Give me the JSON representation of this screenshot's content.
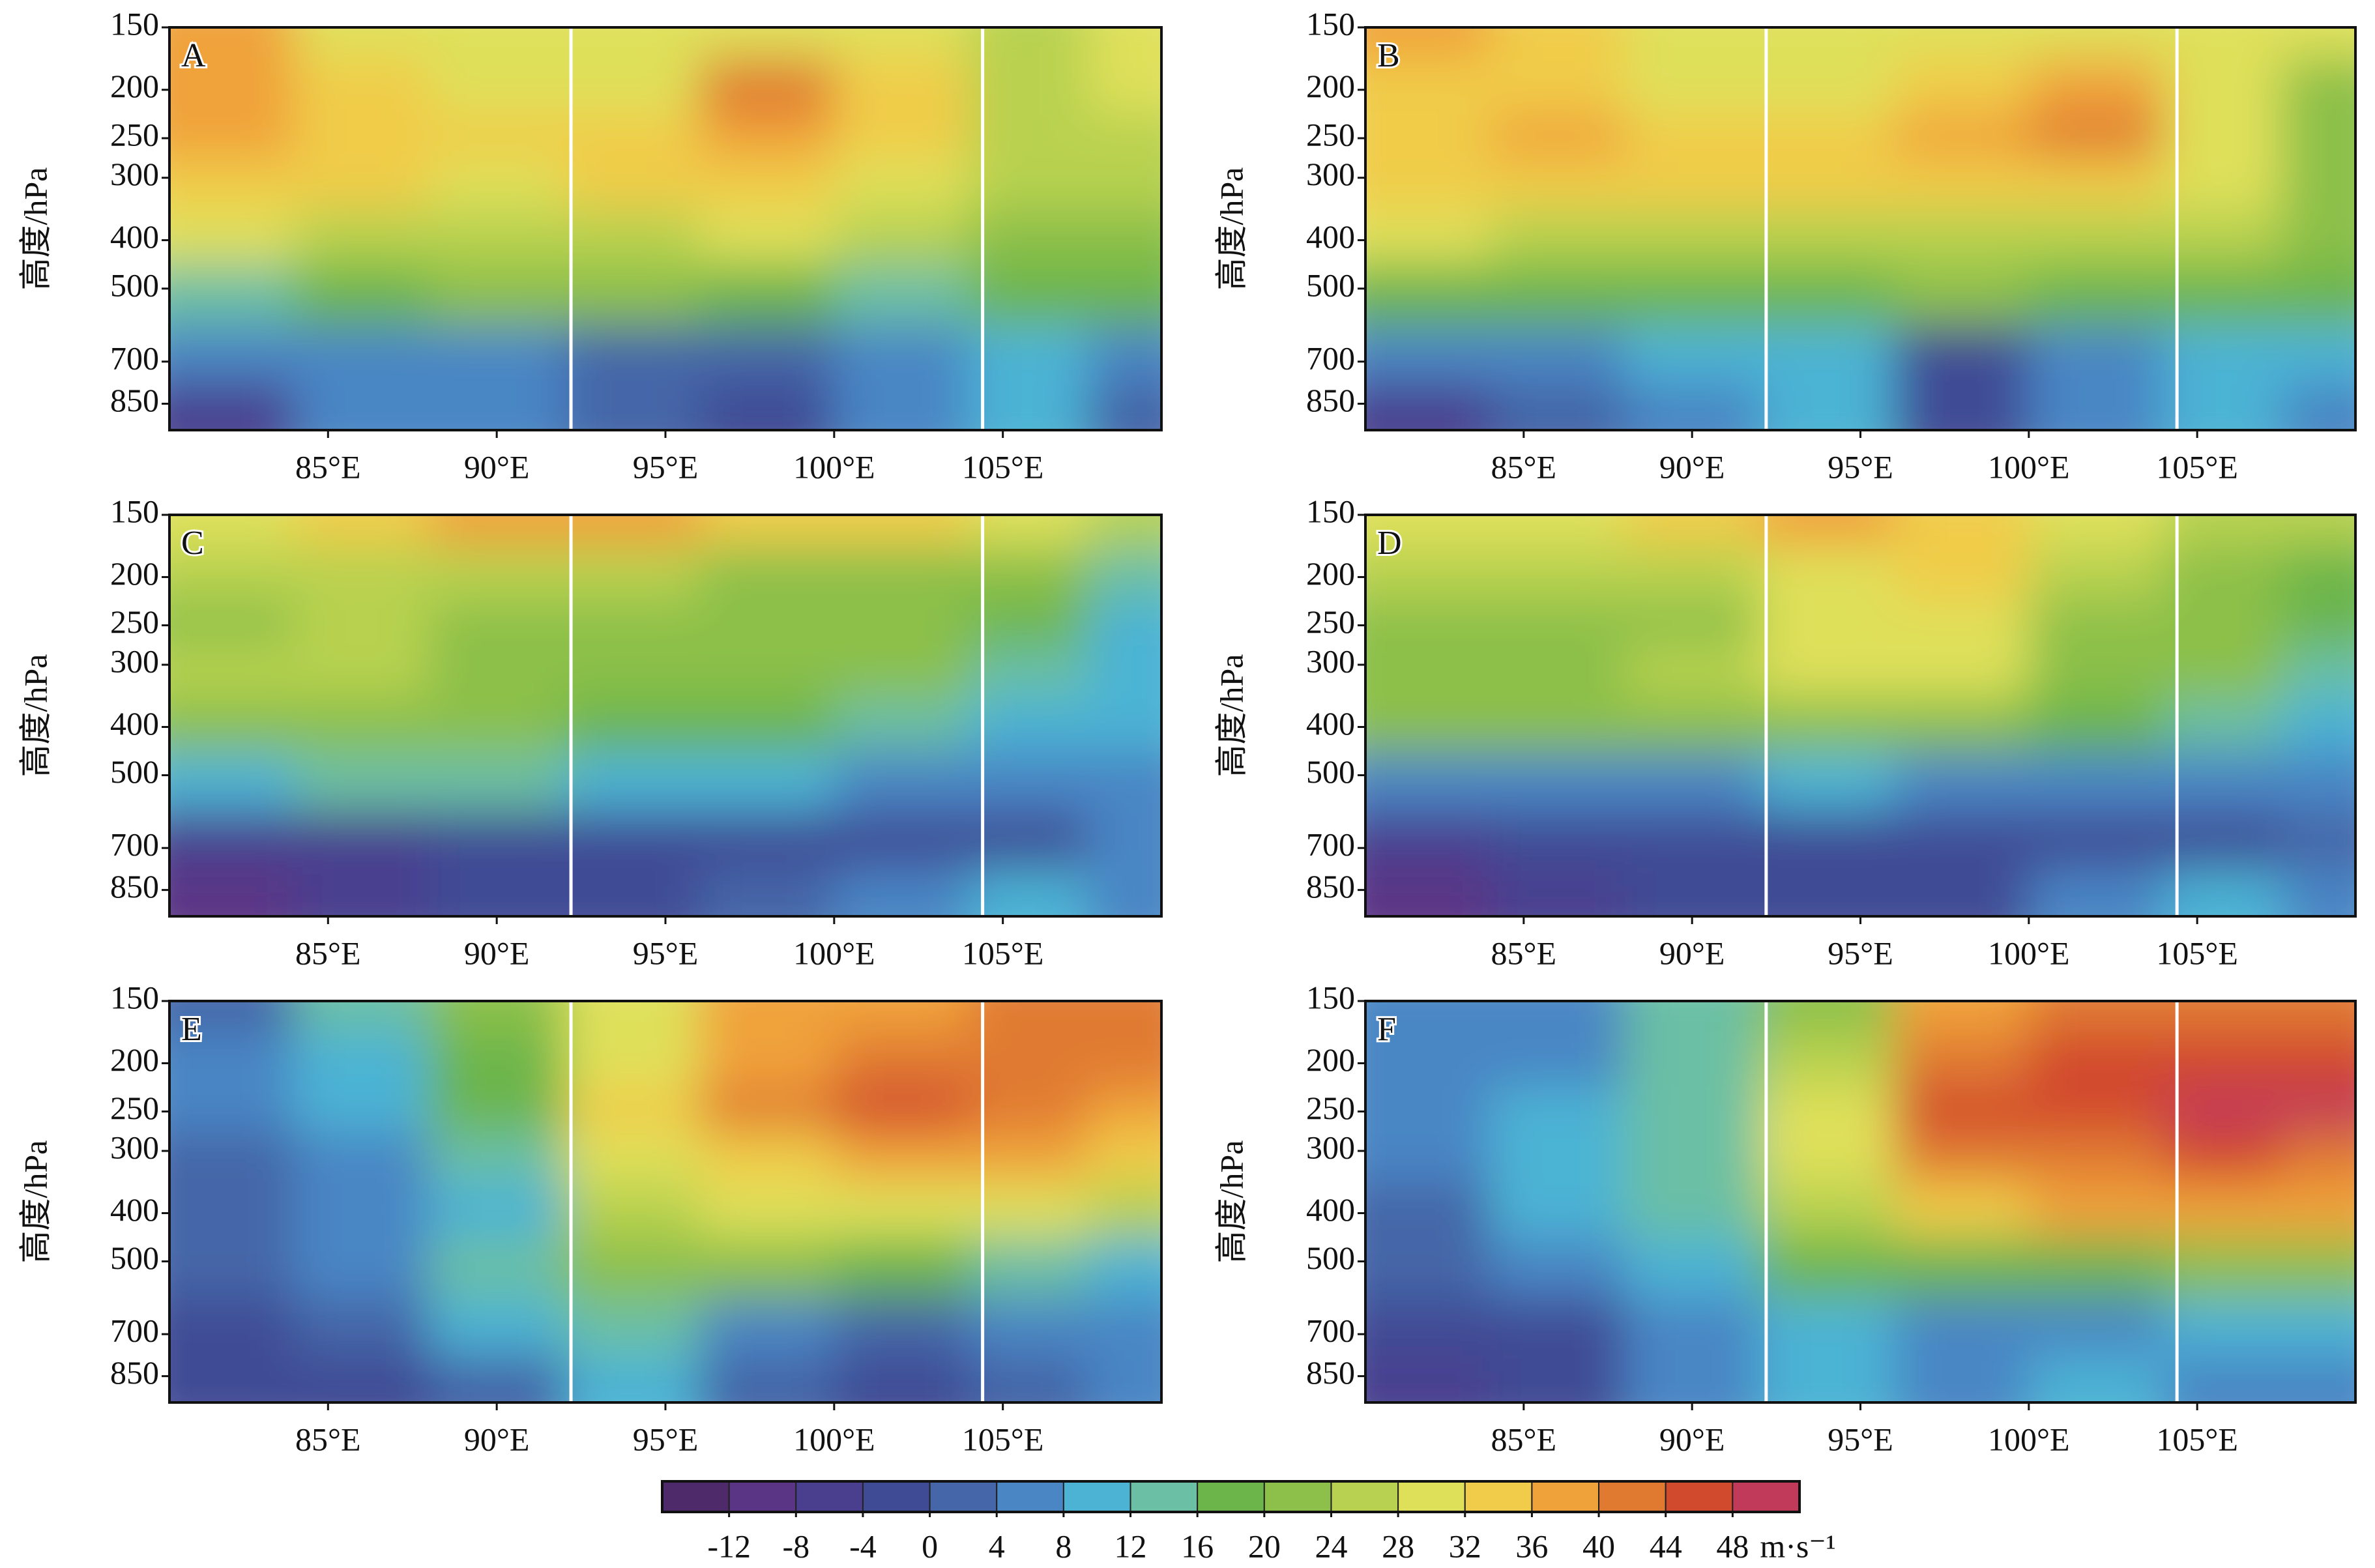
{
  "chart_data": [
    {
      "type": "contour",
      "label": "A",
      "ylabel": "高度/hPa",
      "x": [
        82,
        86,
        90,
        94,
        98,
        102,
        106,
        109
      ],
      "y": [
        150,
        200,
        250,
        300,
        400,
        500,
        700,
        850
      ],
      "values": [
        [
          38,
          30,
          30,
          28,
          30,
          28,
          26,
          28
        ],
        [
          36,
          32,
          30,
          30,
          40,
          34,
          26,
          28
        ],
        [
          36,
          34,
          32,
          34,
          38,
          32,
          26,
          24
        ],
        [
          32,
          32,
          30,
          32,
          32,
          30,
          24,
          24
        ],
        [
          28,
          26,
          24,
          26,
          28,
          26,
          22,
          22
        ],
        [
          14,
          18,
          20,
          22,
          18,
          14,
          18,
          18
        ],
        [
          6,
          6,
          4,
          2,
          2,
          6,
          10,
          4
        ],
        [
          -8,
          4,
          4,
          0,
          -4,
          6,
          8,
          2
        ]
      ],
      "xlim": [
        80.3,
        109.7
      ],
      "ylim": [
        960,
        150
      ],
      "log_y": true,
      "xticks": [
        {
          "value": 85,
          "label": "85°E"
        },
        {
          "value": 90,
          "label": "90°E"
        },
        {
          "value": 95,
          "label": "95°E"
        },
        {
          "value": 100,
          "label": "100°E"
        },
        {
          "value": 105,
          "label": "105°E"
        }
      ],
      "yticks": [
        150,
        200,
        250,
        300,
        400,
        500,
        700,
        850
      ],
      "vlines": [
        92.2,
        104.4
      ],
      "vline_color": "#ffffff"
    },
    {
      "type": "contour",
      "label": "B",
      "ylabel": "高度/hPa",
      "x": [
        82,
        86,
        90,
        94,
        98,
        102,
        106,
        109
      ],
      "y": [
        150,
        200,
        250,
        300,
        400,
        500,
        700,
        850
      ],
      "values": [
        [
          36,
          32,
          28,
          30,
          28,
          28,
          28,
          28
        ],
        [
          34,
          32,
          30,
          30,
          32,
          38,
          30,
          22
        ],
        [
          34,
          36,
          32,
          32,
          36,
          40,
          30,
          22
        ],
        [
          32,
          32,
          32,
          32,
          32,
          34,
          28,
          22
        ],
        [
          28,
          26,
          26,
          26,
          26,
          26,
          24,
          22
        ],
        [
          16,
          18,
          18,
          18,
          20,
          16,
          18,
          16
        ],
        [
          4,
          6,
          10,
          8,
          -4,
          6,
          10,
          10
        ],
        [
          -8,
          0,
          4,
          8,
          -4,
          6,
          10,
          4
        ]
      ],
      "xlim": [
        80.3,
        109.7
      ],
      "ylim": [
        960,
        150
      ],
      "log_y": true,
      "xticks": [
        {
          "value": 85,
          "label": "85°E"
        },
        {
          "value": 90,
          "label": "90°E"
        },
        {
          "value": 95,
          "label": "95°E"
        },
        {
          "value": 100,
          "label": "100°E"
        },
        {
          "value": 105,
          "label": "105°E"
        }
      ],
      "yticks": [
        150,
        200,
        250,
        300,
        400,
        500,
        700,
        850
      ],
      "vlines": [
        92.2,
        104.4
      ],
      "vline_color": "#ffffff"
    },
    {
      "type": "contour",
      "label": "C",
      "ylabel": "高度/hPa",
      "x": [
        82,
        86,
        90,
        94,
        98,
        102,
        106,
        109
      ],
      "y": [
        150,
        200,
        250,
        300,
        400,
        500,
        700,
        850
      ],
      "values": [
        [
          30,
          32,
          36,
          36,
          34,
          32,
          28,
          26
        ],
        [
          24,
          26,
          26,
          24,
          22,
          22,
          20,
          14
        ],
        [
          22,
          24,
          22,
          20,
          20,
          20,
          16,
          10
        ],
        [
          24,
          24,
          22,
          20,
          20,
          20,
          14,
          10
        ],
        [
          20,
          22,
          20,
          16,
          16,
          14,
          10,
          8
        ],
        [
          10,
          14,
          12,
          10,
          8,
          6,
          6,
          6
        ],
        [
          -8,
          -8,
          -4,
          -4,
          -4,
          -4,
          -4,
          4
        ],
        [
          -12,
          -8,
          -4,
          -4,
          0,
          4,
          8,
          4
        ]
      ],
      "xlim": [
        80.3,
        109.7
      ],
      "ylim": [
        960,
        150
      ],
      "log_y": true,
      "xticks": [
        {
          "value": 85,
          "label": "85°E"
        },
        {
          "value": 90,
          "label": "90°E"
        },
        {
          "value": 95,
          "label": "95°E"
        },
        {
          "value": 100,
          "label": "100°E"
        },
        {
          "value": 105,
          "label": "105°E"
        }
      ],
      "yticks": [
        150,
        200,
        250,
        300,
        400,
        500,
        700,
        850
      ],
      "vlines": [
        92.2,
        104.4
      ],
      "vline_color": "#ffffff"
    },
    {
      "type": "contour",
      "label": "D",
      "ylabel": "高度/hPa",
      "x": [
        82,
        86,
        90,
        94,
        98,
        102,
        106,
        109
      ],
      "y": [
        150,
        200,
        250,
        300,
        400,
        500,
        700,
        850
      ],
      "values": [
        [
          28,
          28,
          32,
          36,
          32,
          28,
          26,
          24
        ],
        [
          24,
          24,
          24,
          30,
          34,
          24,
          22,
          16
        ],
        [
          20,
          20,
          22,
          28,
          28,
          22,
          20,
          16
        ],
        [
          22,
          22,
          24,
          28,
          28,
          22,
          20,
          14
        ],
        [
          20,
          20,
          20,
          22,
          20,
          18,
          14,
          10
        ],
        [
          4,
          6,
          6,
          8,
          4,
          6,
          6,
          6
        ],
        [
          -8,
          -4,
          -4,
          -4,
          -4,
          -4,
          -4,
          0
        ],
        [
          -12,
          -8,
          -4,
          -4,
          -4,
          4,
          8,
          4
        ]
      ],
      "xlim": [
        80.3,
        109.7
      ],
      "ylim": [
        960,
        150
      ],
      "log_y": true,
      "xticks": [
        {
          "value": 85,
          "label": "85°E"
        },
        {
          "value": 90,
          "label": "90°E"
        },
        {
          "value": 95,
          "label": "95°E"
        },
        {
          "value": 100,
          "label": "100°E"
        },
        {
          "value": 105,
          "label": "105°E"
        }
      ],
      "yticks": [
        150,
        200,
        250,
        300,
        400,
        500,
        700,
        850
      ],
      "vlines": [
        92.2,
        104.4
      ],
      "vline_color": "#ffffff"
    },
    {
      "type": "contour",
      "label": "E",
      "ylabel": "高度/hPa",
      "x": [
        82,
        86,
        90,
        94,
        98,
        102,
        106,
        109
      ],
      "y": [
        150,
        200,
        250,
        300,
        400,
        500,
        700,
        850
      ],
      "values": [
        [
          0,
          12,
          20,
          30,
          36,
          38,
          40,
          42
        ],
        [
          4,
          10,
          18,
          30,
          38,
          42,
          42,
          42
        ],
        [
          4,
          8,
          18,
          32,
          40,
          44,
          40,
          38
        ],
        [
          0,
          4,
          14,
          28,
          34,
          38,
          36,
          34
        ],
        [
          0,
          4,
          10,
          26,
          30,
          30,
          28,
          26
        ],
        [
          0,
          4,
          14,
          22,
          20,
          16,
          12,
          8
        ],
        [
          -4,
          0,
          8,
          12,
          4,
          0,
          4,
          4
        ],
        [
          -4,
          -4,
          0,
          8,
          0,
          -4,
          0,
          4
        ]
      ],
      "xlim": [
        80.3,
        109.7
      ],
      "ylim": [
        960,
        150
      ],
      "log_y": true,
      "xticks": [
        {
          "value": 85,
          "label": "85°E"
        },
        {
          "value": 90,
          "label": "90°E"
        },
        {
          "value": 95,
          "label": "95°E"
        },
        {
          "value": 100,
          "label": "100°E"
        },
        {
          "value": 105,
          "label": "105°E"
        }
      ],
      "yticks": [
        150,
        200,
        250,
        300,
        400,
        500,
        700,
        850
      ],
      "vlines": [
        92.2,
        104.4
      ],
      "vline_color": "#ffffff"
    },
    {
      "type": "contour",
      "label": "F",
      "ylabel": "高度/hPa",
      "x": [
        82,
        86,
        90,
        94,
        98,
        102,
        106,
        109
      ],
      "y": [
        150,
        200,
        250,
        300,
        400,
        500,
        700,
        850
      ],
      "values": [
        [
          4,
          4,
          12,
          22,
          36,
          40,
          42,
          40
        ],
        [
          4,
          6,
          14,
          26,
          40,
          44,
          46,
          44
        ],
        [
          4,
          8,
          14,
          28,
          44,
          46,
          50,
          48
        ],
        [
          4,
          8,
          14,
          30,
          40,
          42,
          44,
          42
        ],
        [
          0,
          8,
          14,
          26,
          34,
          36,
          36,
          36
        ],
        [
          0,
          4,
          8,
          16,
          16,
          16,
          20,
          20
        ],
        [
          -4,
          -4,
          4,
          8,
          4,
          4,
          8,
          8
        ],
        [
          -8,
          -4,
          4,
          8,
          4,
          8,
          4,
          4
        ]
      ],
      "xlim": [
        80.3,
        109.7
      ],
      "ylim": [
        960,
        150
      ],
      "log_y": true,
      "xticks": [
        {
          "value": 85,
          "label": "85°E"
        },
        {
          "value": 90,
          "label": "90°E"
        },
        {
          "value": 95,
          "label": "95°E"
        },
        {
          "value": 100,
          "label": "100°E"
        },
        {
          "value": 105,
          "label": "105°E"
        }
      ],
      "yticks": [
        150,
        200,
        250,
        300,
        400,
        500,
        700,
        850
      ],
      "vlines": [
        92.2,
        104.4
      ],
      "vline_color": "#ffffff"
    }
  ],
  "colorbar": {
    "bins": [
      -16,
      -12,
      -8,
      -4,
      0,
      4,
      8,
      12,
      16,
      20,
      24,
      28,
      32,
      36,
      40,
      44,
      48,
      52
    ],
    "colors": [
      "#4e2a6b",
      "#5b3585",
      "#4a3f8f",
      "#3f4c95",
      "#4566a8",
      "#4a86c4",
      "#4cb3d4",
      "#6bbfa4",
      "#6cb54b",
      "#8cc04a",
      "#b8d150",
      "#dfe05a",
      "#f0cc4a",
      "#f0a23a",
      "#e07a30",
      "#d24a2e",
      "#c23a5a"
    ],
    "ticks": [
      -12,
      -8,
      -4,
      0,
      4,
      8,
      12,
      16,
      20,
      24,
      28,
      32,
      36,
      40,
      44,
      48
    ],
    "unit": "m·s⁻¹"
  }
}
